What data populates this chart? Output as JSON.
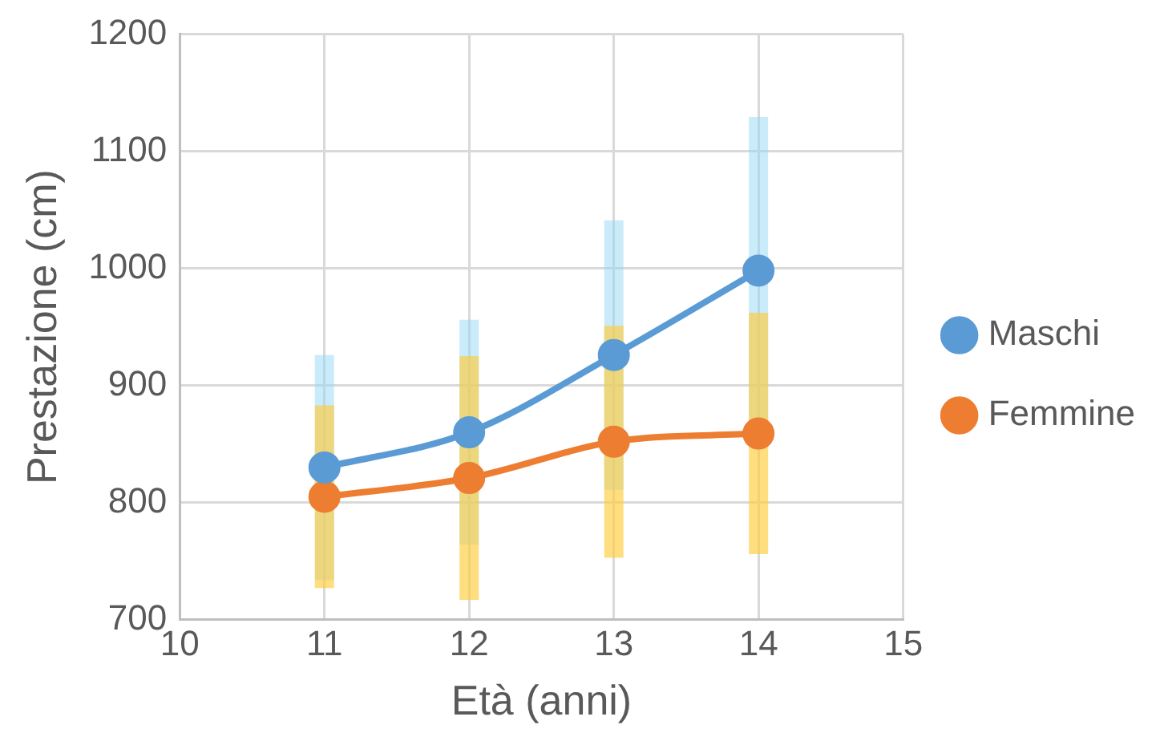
{
  "chart_data": {
    "type": "line",
    "xlabel": "Età (anni)",
    "ylabel": "Prestazione (cm)",
    "x": [
      11,
      12,
      13,
      14
    ],
    "series": [
      {
        "name": "Maschi",
        "color": "#5b9bd5",
        "values": [
          830,
          860,
          926,
          998
        ],
        "errors": [
          96,
          96,
          115,
          131
        ]
      },
      {
        "name": "Femmine",
        "color": "#ed7d31",
        "values": [
          805,
          821,
          852,
          859
        ],
        "errors": [
          78,
          104,
          99,
          103
        ]
      }
    ],
    "xlim": [
      10,
      15
    ],
    "xticks": [
      10,
      11,
      12,
      13,
      14,
      15
    ],
    "ylim": [
      700,
      1200
    ],
    "yticks": [
      700,
      800,
      900,
      1000,
      1100,
      1200
    ],
    "grid": true,
    "legend": "right",
    "marker": "circle",
    "line_style": "solid"
  }
}
